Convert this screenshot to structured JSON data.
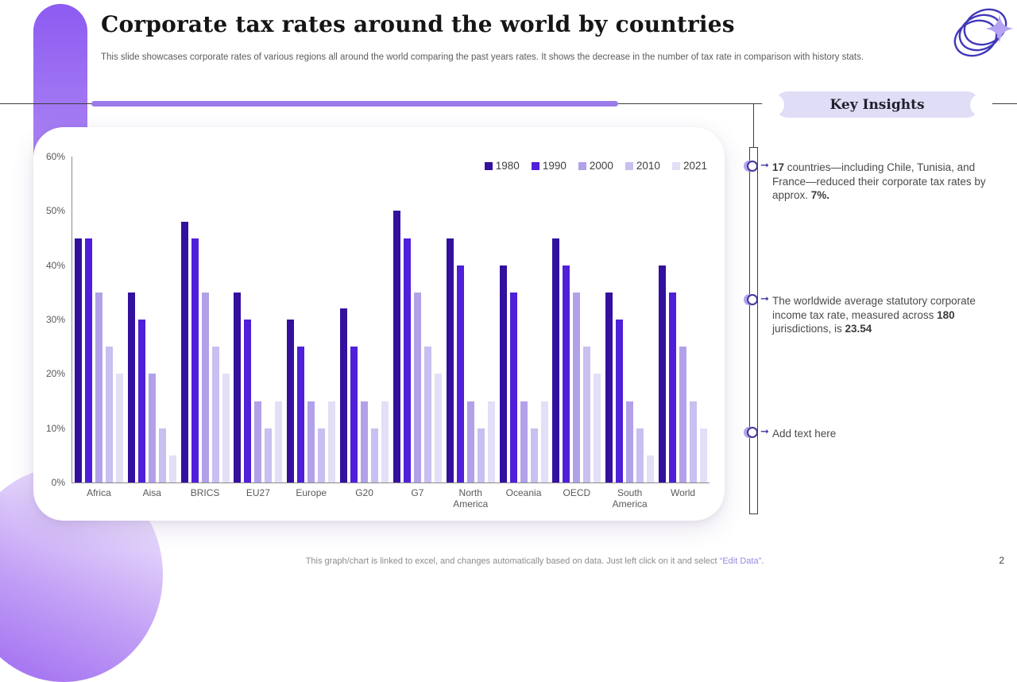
{
  "slide": {
    "title": "Corporate tax rates around the world by countries",
    "subtitle": "This slide showcases corporate rates of various regions all around the world comparing the past years rates. It shows the decrease in the number of tax rate in comparison with history stats.",
    "page_number": "2",
    "footer": {
      "prefix": "This graph/chart is linked to excel, and changes automatically based on data. Just left click on it and select ",
      "highlight": "“Edit Data”",
      "suffix": "."
    }
  },
  "icons": {
    "logo": "overlapping-rings-with-sparkle"
  },
  "key_insights": {
    "header": "Key Insights",
    "items": [
      {
        "segments": [
          {
            "text": "17 ",
            "bold": true
          },
          {
            "text": "countries—including Chile, Tunisia, and France—reduced their corporate tax rates by approx. ",
            "bold": false
          },
          {
            "text": "7%.",
            "bold": true
          }
        ]
      },
      {
        "segments": [
          {
            "text": "The worldwide average statutory corporate income tax rate, measured across ",
            "bold": false
          },
          {
            "text": "180",
            "bold": true
          },
          {
            "text": " jurisdictions, is ",
            "bold": false
          },
          {
            "text": "23.54",
            "bold": true
          }
        ]
      },
      {
        "segments": [
          {
            "text": "Add text here",
            "bold": false
          }
        ]
      }
    ]
  },
  "chart_data": {
    "type": "bar",
    "title": "",
    "xlabel": "",
    "ylabel": "",
    "ylim": [
      0,
      60
    ],
    "y_ticks": [
      "0%",
      "10%",
      "20%",
      "30%",
      "40%",
      "50%",
      "60%"
    ],
    "grid": false,
    "legend_position": "top-right",
    "categories": [
      "Africa",
      "Aisa",
      "BRICS",
      "EU27",
      "Europe",
      "G20",
      "G7",
      "North America",
      "Oceania",
      "OECD",
      "South America",
      "World"
    ],
    "series": [
      {
        "name": "1980",
        "color": "#33109E",
        "values": [
          45,
          35,
          48,
          35,
          30,
          32,
          50,
          45,
          40,
          45,
          35,
          40
        ]
      },
      {
        "name": "1990",
        "color": "#4F1FD9",
        "values": [
          45,
          30,
          45,
          30,
          25,
          25,
          45,
          40,
          35,
          40,
          30,
          35
        ]
      },
      {
        "name": "2000",
        "color": "#B2A1E8",
        "values": [
          35,
          20,
          35,
          15,
          15,
          15,
          35,
          15,
          15,
          35,
          15,
          25
        ]
      },
      {
        "name": "2010",
        "color": "#C9BFF0",
        "values": [
          25,
          10,
          25,
          10,
          10,
          10,
          25,
          10,
          10,
          25,
          10,
          15
        ]
      },
      {
        "name": "2021",
        "color": "#E3DFF7",
        "values": [
          20,
          5,
          20,
          15,
          15,
          15,
          20,
          15,
          15,
          20,
          5,
          10
        ]
      }
    ]
  }
}
